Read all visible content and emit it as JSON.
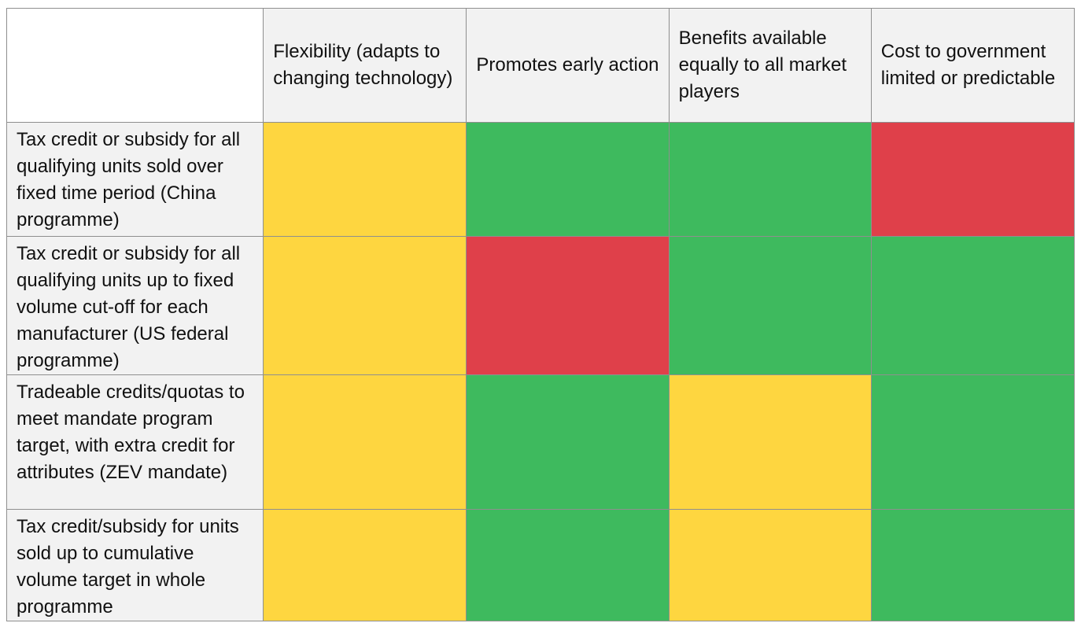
{
  "table": {
    "columns": [
      "",
      "Flexibility (adapts to changing technology)",
      "Promotes early action",
      "Benefits available equally to all market players",
      "Cost to government limited or predictable"
    ],
    "rows": [
      {
        "label": "Tax credit or subsidy for all qualifying units sold over fixed time period (China programme)",
        "ratings": [
          "yellow",
          "green",
          "green",
          "red"
        ]
      },
      {
        "label": "Tax credit or subsidy for all qualifying units up to fixed volume cut-off for each manufacturer (US federal programme)",
        "ratings": [
          "yellow",
          "red",
          "green",
          "green"
        ]
      },
      {
        "label": "Tradeable credits/quotas to meet mandate program target, with extra credit for attributes (ZEV mandate)",
        "ratings": [
          "yellow",
          "green",
          "yellow",
          "green"
        ]
      },
      {
        "label": "Tax credit/subsidy for units sold up to cumulative volume target in whole programme",
        "ratings": [
          "yellow",
          "green",
          "yellow",
          "green"
        ]
      }
    ]
  },
  "colors": {
    "yellow": "#fed640",
    "green": "#3eba5e",
    "red": "#df404a",
    "header_bg": "#f2f2f2",
    "grid": "#8f8f8f"
  }
}
